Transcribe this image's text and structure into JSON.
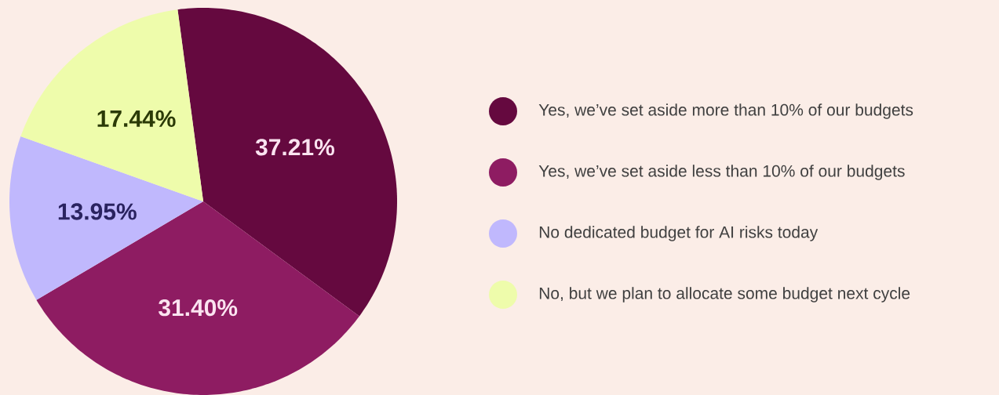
{
  "chart_data": {
    "type": "pie",
    "categories": [
      "Yes, we’ve set aside more than 10% of our budgets",
      "Yes, we’ve set aside less than 10% of our budgets",
      "No dedicated budget for AI risks today",
      "No, but we plan to allocate some budget next cycle"
    ],
    "values": [
      37.21,
      31.4,
      13.95,
      17.44
    ],
    "colors": [
      "#65093f",
      "#8e1c62",
      "#c0b8fd",
      "#eefcab"
    ],
    "value_labels": [
      "37.21%",
      "31.40%",
      "13.95%",
      "17.44%"
    ],
    "legend": "right"
  }
}
